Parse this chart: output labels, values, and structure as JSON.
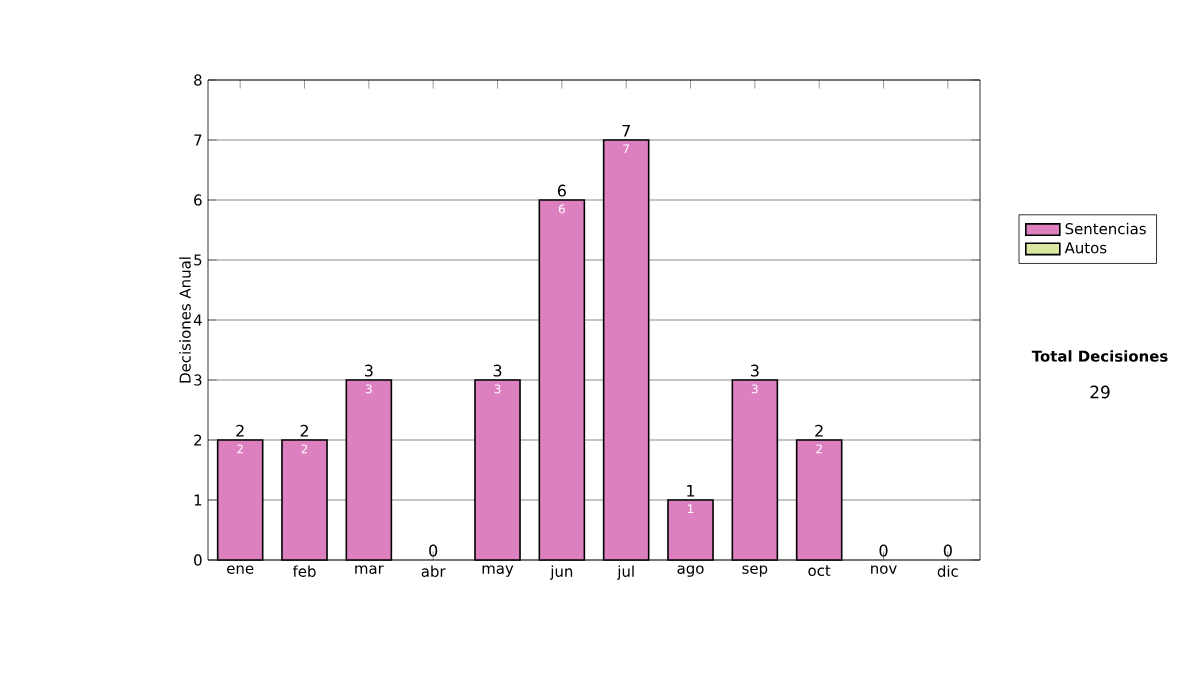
{
  "chart_data": {
    "type": "bar",
    "stacked": true,
    "ylabel": "Decisiones Anual",
    "categories": [
      "ene",
      "feb",
      "mar",
      "abr",
      "may",
      "jun",
      "jul",
      "ago",
      "sep",
      "oct",
      "nov",
      "dic"
    ],
    "series": [
      {
        "name": "Sentencias",
        "color": "#dd80c0",
        "values": [
          2,
          2,
          3,
          0,
          3,
          6,
          7,
          1,
          3,
          2,
          0,
          0
        ],
        "value_labels": [
          "2",
          "2",
          "3",
          null,
          "3",
          "6",
          "7",
          "1",
          "3",
          "2",
          null,
          null
        ]
      },
      {
        "name": "Autos",
        "color": "#d8e8a0",
        "values": [
          0,
          0,
          0,
          0,
          0,
          0,
          0,
          0,
          0,
          0,
          0,
          0
        ]
      }
    ],
    "totals": [
      "2",
      "2",
      "3",
      "0",
      "3",
      "6",
      "7",
      "1",
      "3",
      "2",
      "0",
      "0"
    ],
    "ylim": [
      0,
      8
    ],
    "yticks": [
      0,
      1,
      2,
      3,
      4,
      5,
      6,
      7,
      8
    ],
    "grid": "y",
    "legend": "right",
    "annotations": [
      "Total Decisiones",
      "29"
    ]
  }
}
